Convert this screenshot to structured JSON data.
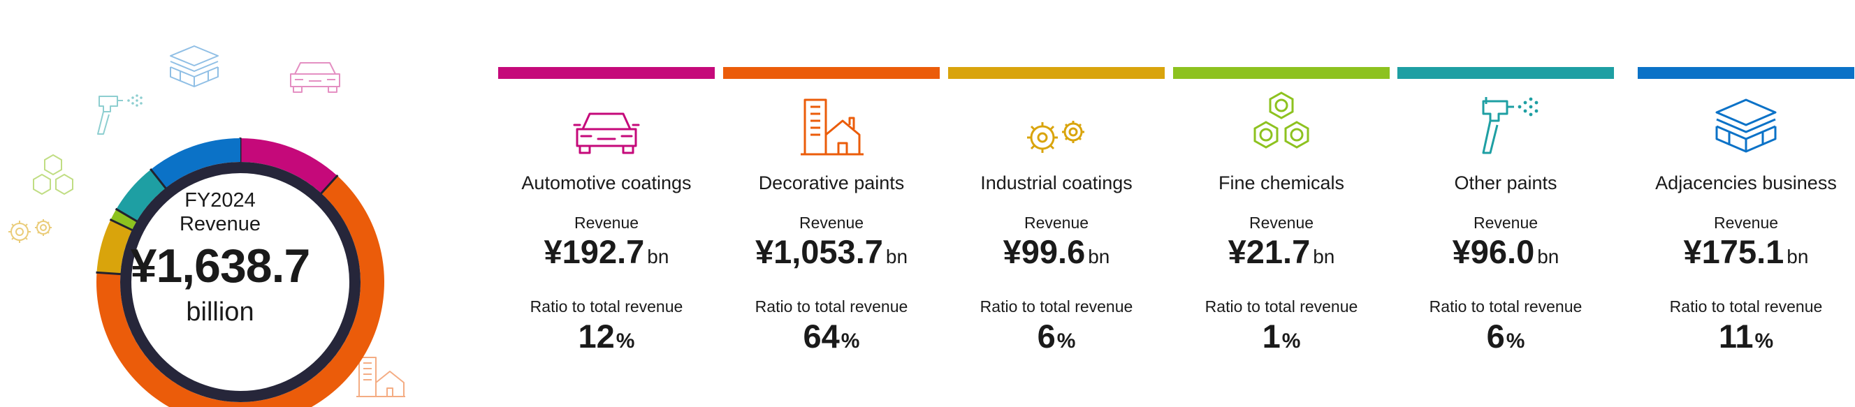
{
  "center": {
    "line1": "FY2024",
    "line2": "Revenue",
    "value": "¥1,638.7",
    "line3": "billion"
  },
  "chart_data": {
    "type": "pie",
    "total": 1638.7,
    "unit": "¥ billion",
    "categories": [
      "Automotive coatings",
      "Decorative paints",
      "Industrial coatings",
      "Fine chemicals",
      "Other paints",
      "Adjacencies business"
    ],
    "values": [
      192.7,
      1053.7,
      99.6,
      21.7,
      96.0,
      175.1
    ],
    "ratios_percent": [
      12,
      64,
      6,
      1,
      6,
      11
    ],
    "colors": [
      "#c5097a",
      "#eb5c0a",
      "#d9a40c",
      "#8dc21f",
      "#1e9fa3",
      "#0b72c7"
    ]
  },
  "labels": {
    "revenue": "Revenue",
    "ratio": "Ratio to total revenue",
    "bn": "bn",
    "pct": "%"
  },
  "segments": [
    {
      "name": "Automotive coatings",
      "revenue": "¥192.7",
      "ratio": "12",
      "color": "#c5097a",
      "icon": "car-icon"
    },
    {
      "name": "Decorative paints",
      "revenue": "¥1,053.7",
      "ratio": "64",
      "color": "#eb5c0a",
      "icon": "buildings-icon"
    },
    {
      "name": "Industrial coatings",
      "revenue": "¥99.6",
      "ratio": "6",
      "color": "#d9a40c",
      "icon": "gears-icon"
    },
    {
      "name": "Fine chemicals",
      "revenue": "¥21.7",
      "ratio": "1",
      "color": "#8dc21f",
      "icon": "benzene-rings-icon"
    },
    {
      "name": "Other paints",
      "revenue": "¥96.0",
      "ratio": "6",
      "color": "#1e9fa3",
      "icon": "spray-gun-icon"
    },
    {
      "name": "Adjacencies business",
      "revenue": "¥175.1",
      "ratio": "11",
      "color": "#0b72c7",
      "icon": "layers-icon"
    }
  ]
}
